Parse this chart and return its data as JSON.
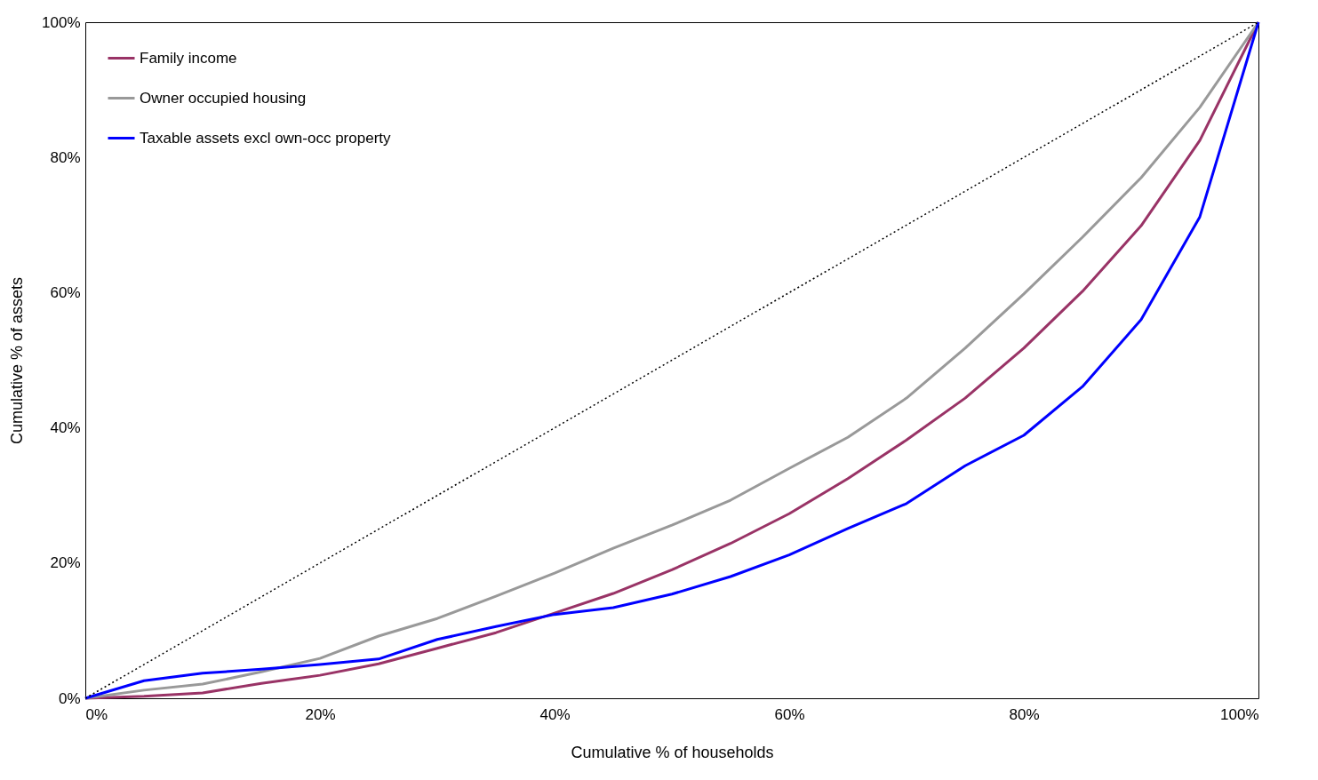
{
  "chart_data": {
    "type": "line",
    "xlabel": "Cumulative % of households",
    "ylabel": "Cumulative % of assets",
    "x": [
      0,
      5,
      10,
      15,
      20,
      25,
      30,
      35,
      40,
      45,
      50,
      55,
      60,
      65,
      70,
      75,
      80,
      85,
      90,
      95,
      100
    ],
    "series": [
      {
        "name": "Family income",
        "color": "#993366",
        "values": [
          0,
          0.3,
          0.8,
          2.2,
          3.4,
          5.1,
          7.4,
          9.7,
          12.6,
          15.5,
          19.0,
          22.9,
          27.3,
          32.5,
          38.2,
          44.4,
          51.8,
          60.2,
          69.9,
          82.5,
          100
        ]
      },
      {
        "name": "Owner occupied housing",
        "color": "#999999",
        "values": [
          0,
          1.2,
          2.1,
          3.9,
          5.9,
          9.2,
          11.8,
          15.1,
          18.5,
          22.2,
          25.6,
          29.3,
          34.0,
          38.6,
          44.4,
          51.8,
          59.8,
          68.2,
          77.0,
          87.4,
          100
        ]
      },
      {
        "name": "Taxable assets excl own-occ property",
        "color": "#0000ff",
        "values": [
          0,
          2.6,
          3.7,
          4.3,
          5.0,
          5.8,
          8.7,
          10.6,
          12.4,
          13.4,
          15.4,
          18.0,
          21.2,
          25.1,
          28.8,
          34.4,
          38.9,
          46.1,
          56.0,
          71.2,
          100
        ]
      },
      {
        "type": "line",
        "color": "#000000",
        "line_style": "dotted",
        "x": [
          0,
          100
        ],
        "values": [
          0,
          100
        ]
      }
    ],
    "xlim": [
      0,
      100
    ],
    "ylim": [
      0,
      100
    ],
    "xticks": [
      {
        "value": 0,
        "label": "0%"
      },
      {
        "value": 20,
        "label": "20%"
      },
      {
        "value": 40,
        "label": "40%"
      },
      {
        "value": 60,
        "label": "60%"
      },
      {
        "value": 80,
        "label": "80%"
      },
      {
        "value": 100,
        "label": "100%"
      }
    ],
    "yticks": [
      {
        "value": 0,
        "label": "0%"
      },
      {
        "value": 20,
        "label": "20%"
      },
      {
        "value": 40,
        "label": "40%"
      },
      {
        "value": 60,
        "label": "60%"
      },
      {
        "value": 80,
        "label": "80%"
      },
      {
        "value": 100,
        "label": "100%"
      }
    ],
    "grid": false,
    "legend": "top left",
    "line_style": "solid"
  }
}
